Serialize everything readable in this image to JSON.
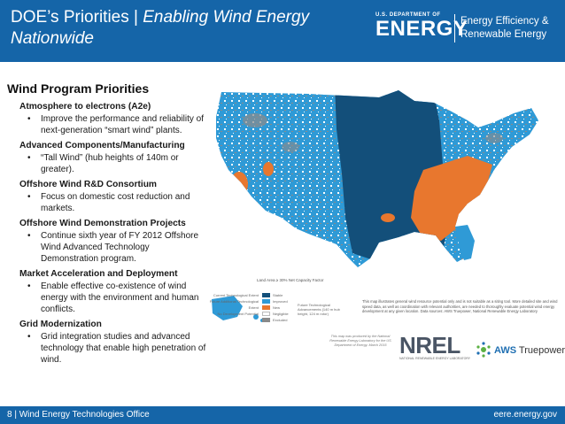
{
  "header": {
    "title_part1": "DOE’s Priorities | ",
    "title_part2": "Enabling Wind Energy Nationwide",
    "logo_usdept": "U.S. DEPARTMENT OF",
    "logo_energy": "ENERGY",
    "logo_line1": "Energy Efficiency &",
    "logo_line2": "Renewable Energy"
  },
  "section_title": "Wind Program Priorities",
  "items": [
    {
      "heading": "Atmosphere to electrons (A2e)",
      "bullets": [
        "Improve the performance and reliability of next-generation “smart wind” plants."
      ]
    },
    {
      "heading": "Advanced Components/Manufacturing",
      "bullets": [
        "“Tall Wind” (hub heights of 140m or greater)."
      ]
    },
    {
      "heading": "Offshore Wind R&D Consortium",
      "bullets": [
        "Focus on domestic cost reduction and markets."
      ]
    },
    {
      "heading": "Offshore Wind Demonstration Projects",
      "bullets": [
        "Continue sixth year of FY 2012 Offshore Wind Advanced Technology Demonstration program."
      ]
    },
    {
      "heading": "Market Acceleration and Deployment",
      "bullets": [
        "Enable effective co-existence of wind energy with the environment and human conflicts."
      ]
    },
    {
      "heading": "Grid Modernization",
      "bullets": [
        "Grid integration studies and advanced technology that enable high penetration of wind."
      ]
    }
  ],
  "map": {
    "legend_title": "Land Area ≥ 30% Net Capacity Factor",
    "legend_left": [
      "Current Technological Extent",
      "Future Additional Technological Extent",
      "No Development Potential"
    ],
    "legend_items": [
      {
        "label": "Stable",
        "color": "#134f7a"
      },
      {
        "label": "Improved",
        "color": "#2f9ad6"
      },
      {
        "label": "New",
        "color": "#e8772e"
      },
      {
        "label": "Negligible",
        "color": "#ffffff"
      },
      {
        "label": "Excluded",
        "color": "#8a8a8a"
      }
    ],
    "future_label": "Future Technological Advancements (140 m hub height, 124 m rotor)",
    "note": "This map illustrates general wind resource potential only and is not suitable as a siting tool. More detailed site and wind speed data, as well as coordination with relevant authorities, are needed to thoroughly evaluate potential wind energy development at any given location. Data sources: AWS Truepower, National Renewable Energy Laboratory",
    "credit": "This map was produced by the National Renewable Energy Laboratory for the US Department of Energy. March 2015",
    "nrel": "NREL",
    "nrel_sub": "NATIONAL RENEWABLE ENERGY LABORATORY",
    "aws_1": "AWS",
    "aws_2": "Truepower"
  },
  "footer": {
    "left": "8 | Wind Energy Technologies Office",
    "right": "eere.energy.gov"
  }
}
